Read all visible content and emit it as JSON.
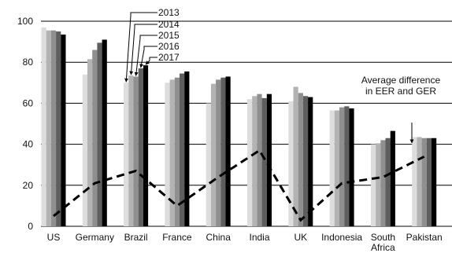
{
  "chart_data": {
    "type": "bar",
    "categories": [
      [
        "US"
      ],
      [
        "Germany"
      ],
      [
        "Brazil"
      ],
      [
        "France"
      ],
      [
        "China"
      ],
      [
        "India"
      ],
      [
        "UK"
      ],
      [
        "Indonesia"
      ],
      [
        "South",
        "Africa"
      ],
      [
        "Pakistan"
      ]
    ],
    "ylim": [
      0,
      100
    ],
    "yticks": [
      0,
      20,
      40,
      60,
      80,
      100
    ],
    "grid": true,
    "series": [
      {
        "name": "2013",
        "color": "#dddddd",
        "values": [
          97,
          74,
          70,
          70,
          60,
          62,
          61,
          56.5,
          40,
          43.5
        ]
      },
      {
        "name": "2014",
        "color": "#b3b3b3",
        "values": [
          95.5,
          81.5,
          73.5,
          71.5,
          69.5,
          63.5,
          68,
          56.5,
          40.5,
          43.5
        ]
      },
      {
        "name": "2015",
        "color": "#8f8f8f",
        "values": [
          95.5,
          86,
          73,
          72.5,
          71.5,
          64.5,
          65,
          58,
          42,
          43
        ]
      },
      {
        "name": "2016",
        "color": "#5e5e5e",
        "values": [
          95,
          89.5,
          77,
          74.5,
          72.5,
          62.5,
          63.5,
          58.5,
          43,
          43
        ]
      },
      {
        "name": "2017",
        "color": "#000000",
        "values": [
          93.5,
          91,
          78.5,
          75.5,
          73,
          64.5,
          63,
          57.5,
          46.5,
          43
        ]
      }
    ],
    "line": {
      "name": "Average difference in EER and GER",
      "values": [
        5,
        21,
        27,
        10,
        24,
        37,
        3,
        21,
        24,
        34
      ]
    },
    "legend": [
      "2013",
      "2014",
      "2015",
      "2016",
      "2017"
    ],
    "annotation": [
      "Average difference",
      "in EER and GER"
    ]
  }
}
